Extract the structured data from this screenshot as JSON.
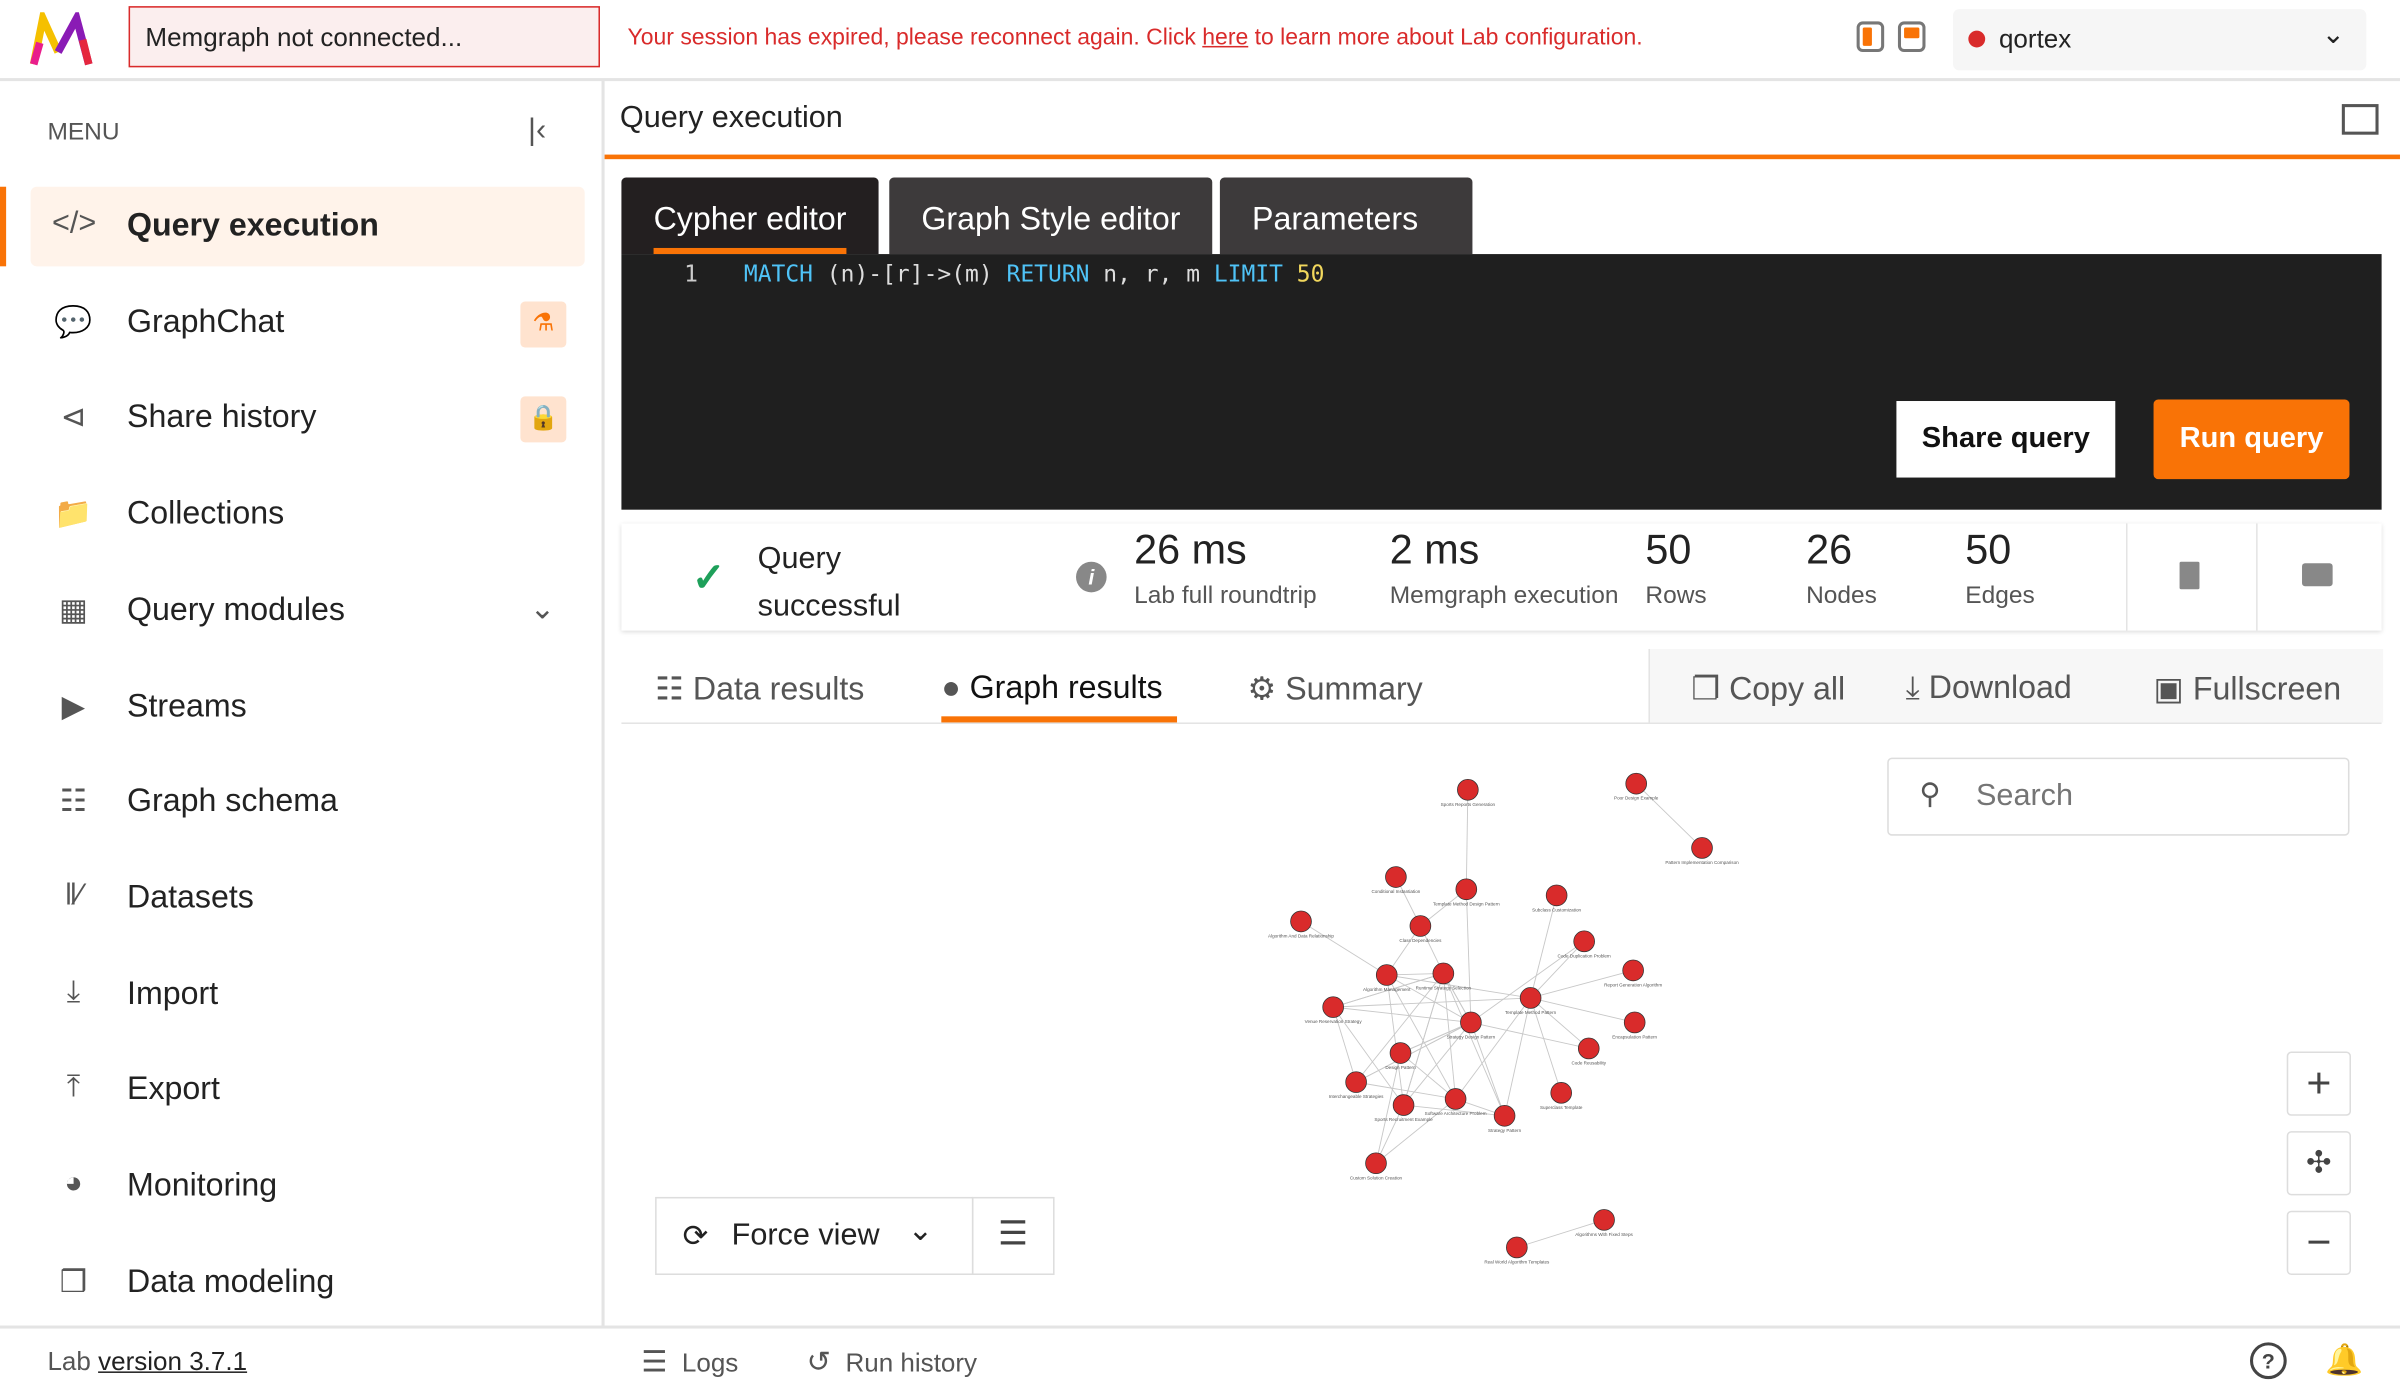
{
  "topbar": {
    "connection_status": "Memgraph not connected...",
    "session_msg_before": "Your session has expired, please reconnect again. Click ",
    "session_link": "here",
    "session_msg_after": " to learn more about Lab configuration.",
    "instance_name": "qortex",
    "instance_status_color": "#d92b2b"
  },
  "sidebar": {
    "menu_label": "MENU",
    "items": [
      {
        "label": "Query execution",
        "icon": "code-icon",
        "active": true
      },
      {
        "label": "GraphChat",
        "icon": "chat-icon",
        "badge": "flask-icon"
      },
      {
        "label": "Share history",
        "icon": "share-icon",
        "badge": "lock-icon"
      },
      {
        "label": "Collections",
        "icon": "folder-icon"
      },
      {
        "label": "Query modules",
        "icon": "terminal-icon",
        "expandable": true
      },
      {
        "label": "Streams",
        "icon": "play-icon"
      },
      {
        "label": "Graph schema",
        "icon": "hierarchy-icon"
      },
      {
        "label": "Datasets",
        "icon": "books-icon"
      },
      {
        "label": "Import",
        "icon": "import-icon"
      },
      {
        "label": "Export",
        "icon": "export-icon"
      },
      {
        "label": "Monitoring",
        "icon": "gauge-icon"
      },
      {
        "label": "Data modeling",
        "icon": "cubes-icon"
      }
    ]
  },
  "main": {
    "title": "Query execution",
    "editor_tabs": [
      "Cypher editor",
      "Graph Style editor",
      "Parameters"
    ],
    "code": {
      "line": "1",
      "match": "MATCH",
      "pattern": " (n)-[r]->(m) ",
      "return": "RETURN",
      "vars": " n, r, m ",
      "limit": "LIMIT",
      "limit_value": "50"
    },
    "share_label": "Share query",
    "run_label": "Run query",
    "status": {
      "line1": "Query",
      "line2": "successful"
    },
    "stats": [
      {
        "value": "26 ms",
        "label": "Lab full roundtrip"
      },
      {
        "value": "2 ms",
        "label": "Memgraph execution"
      },
      {
        "value": "50",
        "label": "Rows"
      },
      {
        "value": "26",
        "label": "Nodes"
      },
      {
        "value": "50",
        "label": "Edges"
      }
    ],
    "result_tabs": [
      "Data results",
      "Graph results",
      "Summary"
    ],
    "actions": [
      "Copy all",
      "Download",
      "Fullscreen"
    ],
    "search_placeholder": "Search",
    "view_mode": "Force view"
  },
  "graph": {
    "node_color": "#d92b2b",
    "nodes": [
      "Sports Reports Generation",
      "Poor Design Example",
      "Pattern Implementation Comparison",
      "Conditional Instantiation",
      "Template Method Design Pattern",
      "Subclass Customization",
      "Algorithm And Data Relationship",
      "Class Dependencies",
      "Code Duplication Problem",
      "Algorithm Management",
      "Runtime Strategy Selection",
      "Report Generation Algorithm",
      "Template Method Pattern",
      "Venue Reservation Strategy",
      "Strategy Design Pattern",
      "Encapsulation Pattern",
      "Design Pattern",
      "Code Reusability",
      "Interchangeable Strategies",
      "Superclass Template",
      "Software Architecture Problem",
      "Sports Recruitment Example",
      "Strategy Pattern",
      "Custom Solution Creation",
      "Algorithms With Fixed Steps",
      "Real World Algorithm Templates"
    ],
    "edges": [
      [
        0,
        4
      ],
      [
        2,
        1
      ],
      [
        25,
        24
      ],
      [
        7,
        3
      ],
      [
        7,
        4
      ],
      [
        6,
        9
      ],
      [
        7,
        9
      ],
      [
        10,
        7
      ],
      [
        12,
        5
      ],
      [
        12,
        8
      ],
      [
        12,
        11
      ],
      [
        12,
        15
      ],
      [
        12,
        17
      ],
      [
        12,
        19
      ],
      [
        12,
        22
      ],
      [
        12,
        20
      ],
      [
        14,
        8
      ],
      [
        14,
        17
      ],
      [
        14,
        16
      ],
      [
        14,
        9
      ],
      [
        14,
        13
      ],
      [
        14,
        18
      ],
      [
        14,
        4
      ],
      [
        10,
        9
      ],
      [
        10,
        13
      ],
      [
        10,
        18
      ],
      [
        10,
        21
      ],
      [
        9,
        21
      ],
      [
        9,
        20
      ],
      [
        13,
        18
      ],
      [
        13,
        21
      ],
      [
        21,
        22
      ],
      [
        21,
        23
      ],
      [
        20,
        23
      ],
      [
        23,
        16
      ],
      [
        18,
        20
      ],
      [
        14,
        21
      ],
      [
        14,
        22
      ],
      [
        10,
        20
      ],
      [
        12,
        9
      ],
      [
        16,
        20
      ],
      [
        10,
        22
      ],
      [
        13,
        10
      ],
      [
        14,
        10
      ],
      [
        12,
        13
      ],
      [
        18,
        14
      ],
      [
        21,
        10
      ],
      [
        22,
        20
      ],
      [
        16,
        14
      ],
      [
        10,
        14
      ]
    ]
  },
  "footer": {
    "lab_label": "Lab ",
    "version": "version 3.7.1",
    "logs": "Logs",
    "run_history": "Run history"
  }
}
